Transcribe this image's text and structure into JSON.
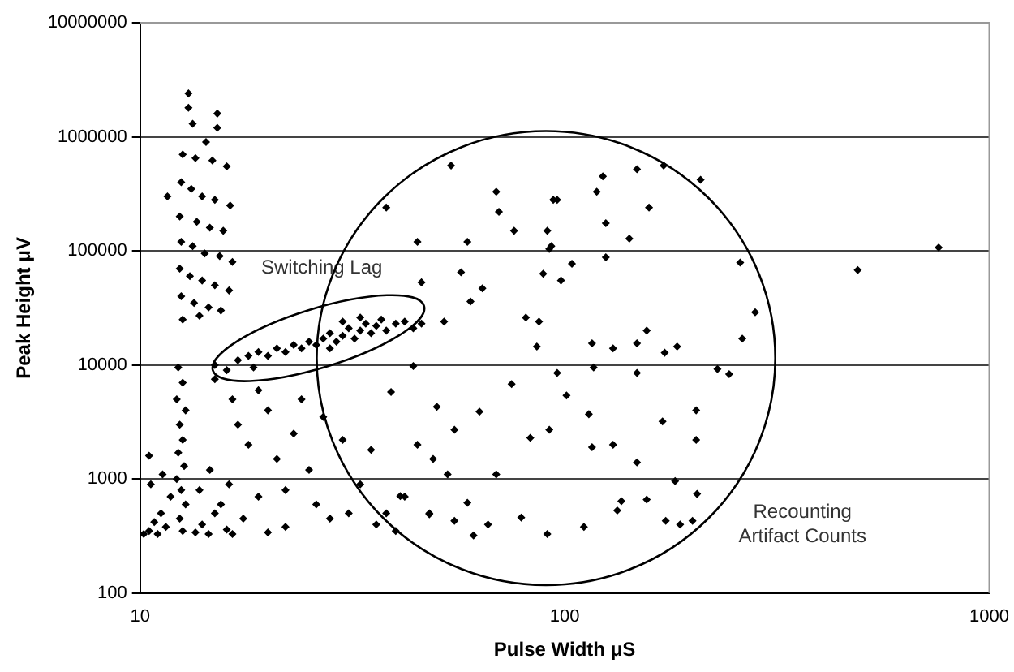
{
  "chart_data": {
    "type": "scatter",
    "xlabel": "Pulse Width μS",
    "ylabel": "Peak Height μV",
    "log": "xy",
    "grid": "y",
    "marker": "diamond",
    "color": "#000000",
    "xlim": [
      10,
      1000
    ],
    "xticks": [
      10,
      100,
      1000
    ],
    "ylim": [
      100,
      10000000
    ],
    "yticks": [
      100,
      1000,
      10000,
      100000,
      1000000,
      10000000
    ],
    "annotations": [
      "Switching Lag",
      "Recounting Artifact Counts"
    ],
    "x": [
      13,
      13,
      13.3,
      15.2,
      15.2,
      14.3,
      12.6,
      13.5,
      14.8,
      16,
      12.5,
      13.2,
      14,
      15,
      16.3,
      11.6,
      12.4,
      13.6,
      14.6,
      15.7,
      12.5,
      13.3,
      14.2,
      15.4,
      16.5,
      12.4,
      13.1,
      14,
      15,
      16.2,
      12.5,
      13.4,
      14.5,
      15.5,
      12.6,
      13.8,
      15,
      16,
      17,
      18,
      18.5,
      19,
      20,
      21,
      22,
      23,
      24,
      25,
      26,
      27,
      28,
      28,
      29,
      30,
      31,
      32,
      33,
      34,
      35,
      36,
      37,
      38,
      40,
      42,
      44,
      46,
      30,
      33,
      12.3,
      12.6,
      12.2,
      12.8,
      12.4,
      12.6,
      12.3,
      12.7,
      12.2,
      12.5,
      12.8,
      12.4,
      12.6,
      10.2,
      10.5,
      10.8,
      11,
      11.2,
      11.5,
      11.8,
      10.6,
      11.3,
      13.5,
      14,
      14.5,
      15,
      15.5,
      16,
      16.5,
      13.8,
      14.6,
      16.2,
      10.5,
      15,
      16.5,
      17,
      18,
      19,
      20,
      21,
      22,
      23,
      24,
      25,
      26,
      27,
      28,
      30,
      31,
      33,
      35,
      36,
      38,
      40,
      42,
      45,
      48,
      19,
      17.5,
      20,
      22,
      148,
      171,
      209,
      123,
      54,
      38,
      69,
      70,
      94,
      91,
      93,
      76,
      59,
      45,
      57,
      46,
      64,
      60,
      52,
      81,
      86,
      44,
      39,
      50,
      63,
      75,
      83,
      55,
      49,
      53,
      69,
      41,
      59,
      48,
      55,
      61,
      66,
      79,
      91,
      111,
      133,
      156,
      173,
      187,
      200,
      205,
      182,
      148,
      130,
      170,
      204,
      204,
      148,
      117,
      96,
      116,
      101,
      114,
      116,
      130,
      148,
      172,
      184,
      156,
      229,
      244,
      262,
      281,
      259,
      92,
      104,
      125,
      142,
      125,
      158,
      96,
      119,
      89,
      98,
      87,
      92,
      136,
      490,
      760
    ],
    "values": [
      2400000,
      1800000,
      1300000,
      1600000,
      1200000,
      900000,
      700000,
      650000,
      620000,
      550000,
      400000,
      350000,
      300000,
      280000,
      250000,
      300000,
      200000,
      180000,
      160000,
      150000,
      120000,
      110000,
      95000,
      90000,
      80000,
      70000,
      60000,
      55000,
      50000,
      45000,
      40000,
      35000,
      32000,
      30000,
      25000,
      27000,
      10000,
      9000,
      11000,
      12000,
      9500,
      13000,
      12000,
      14000,
      13000,
      15000,
      14000,
      16000,
      15000,
      17000,
      19000,
      14000,
      16000,
      18000,
      21000,
      17000,
      20000,
      23000,
      19000,
      22000,
      25000,
      20000,
      23000,
      24000,
      21000,
      23000,
      24000,
      26000,
      9500,
      7000,
      5000,
      4000,
      3000,
      2200,
      1700,
      1300,
      1000,
      800,
      600,
      450,
      350,
      330,
      350,
      420,
      330,
      500,
      380,
      700,
      900,
      1100,
      340,
      400,
      330,
      500,
      600,
      360,
      330,
      800,
      1200,
      900,
      1600,
      7500,
      5000,
      3000,
      2000,
      6000,
      4000,
      1500,
      800,
      2500,
      5000,
      1200,
      600,
      3500,
      450,
      2200,
      500,
      900,
      1800,
      400,
      500,
      350,
      700,
      2000,
      500,
      700,
      450,
      340,
      380,
      520000,
      560000,
      420000,
      450000,
      560000,
      240000,
      330000,
      220000,
      280000,
      150000,
      110000,
      150000,
      120000,
      120000,
      65000,
      53000,
      47000,
      36000,
      24000,
      26000,
      14500,
      9800,
      5800,
      4300,
      3900,
      6800,
      2300,
      2700,
      1500,
      1100,
      1100,
      710,
      620,
      490,
      430,
      320,
      400,
      460,
      330,
      380,
      530,
      660,
      430,
      400,
      430,
      740,
      960,
      1400,
      2000,
      3200,
      4000,
      2200,
      8500,
      9500,
      8500,
      1900,
      5400,
      3700,
      15500,
      14000,
      15500,
      12800,
      14500,
      20000,
      9200,
      8300,
      17000,
      29000,
      79000,
      104000,
      77000,
      88000,
      128000,
      175000,
      240000,
      280000,
      330000,
      63000,
      55000,
      24000,
      2700,
      640,
      68000,
      107000
    ]
  }
}
